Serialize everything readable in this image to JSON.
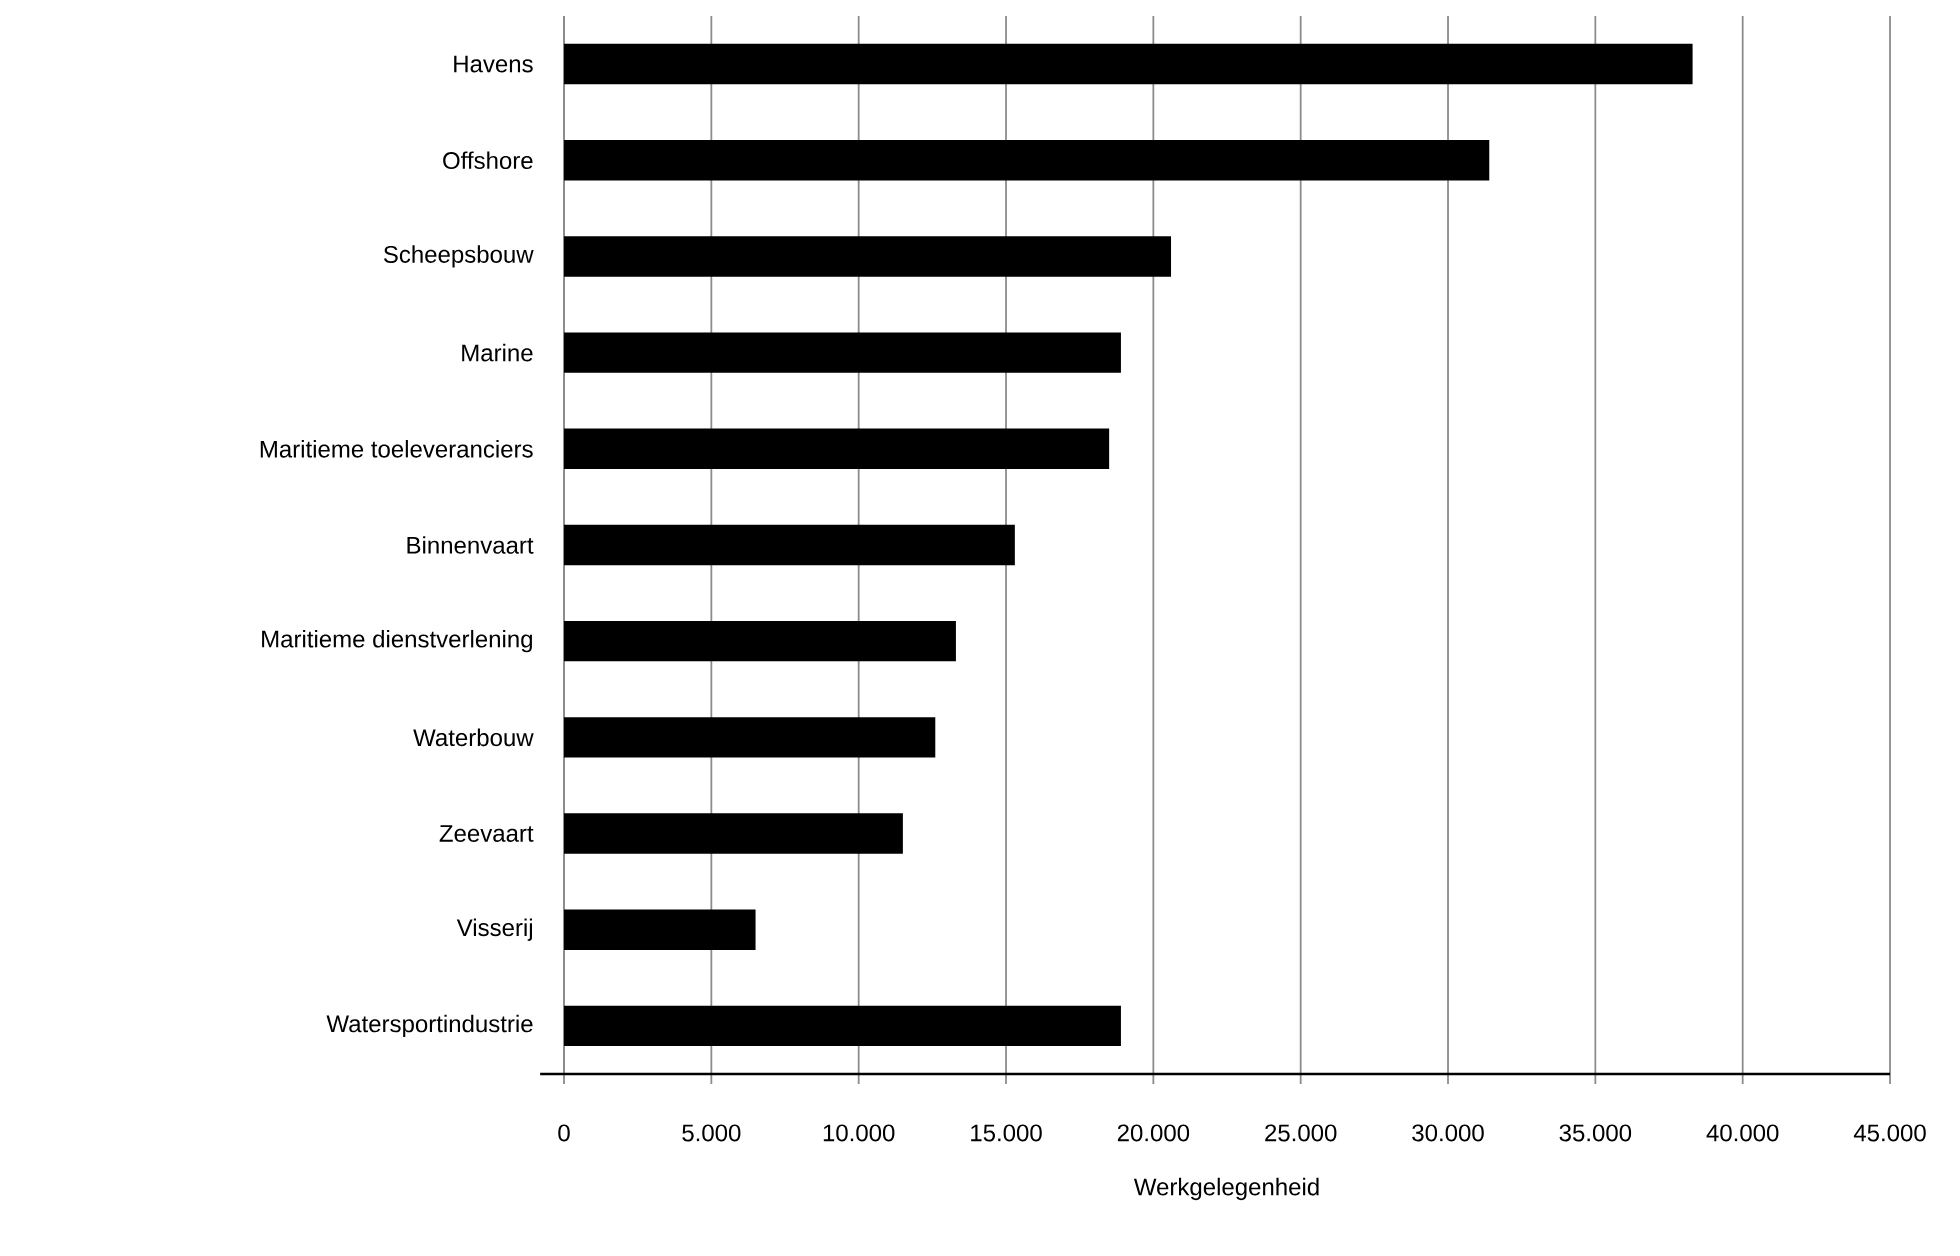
{
  "chart_data": {
    "type": "bar",
    "orientation": "horizontal",
    "xlabel": "Werkgelegenheid",
    "categories": [
      "Havens",
      "Offshore",
      "Scheepsbouw",
      "Marine",
      "Maritieme toeleveranciers",
      "Binnenvaart",
      "Maritieme dienstverlening",
      "Waterbouw",
      "Zeevaart",
      "Visserij",
      "Watersportindustrie"
    ],
    "values": [
      38300,
      31400,
      20600,
      18900,
      18500,
      15300,
      13300,
      12600,
      11500,
      6500,
      18900
    ],
    "color": "#000000",
    "grid": "x",
    "xlim": [
      0,
      45000
    ],
    "xticks": [
      0,
      {
        "value": 5000,
        "label": "5.000"
      },
      {
        "value": 10000,
        "label": "10.000"
      },
      {
        "value": 15000,
        "label": "15.000"
      },
      {
        "value": 20000,
        "label": "20.000"
      },
      {
        "value": 25000,
        "label": "25.000"
      },
      {
        "value": 30000,
        "label": "30.000"
      },
      {
        "value": 35000,
        "label": "35.000"
      },
      {
        "value": 40000,
        "label": "40.000"
      },
      {
        "value": 45000,
        "label": "45.000"
      }
    ]
  }
}
